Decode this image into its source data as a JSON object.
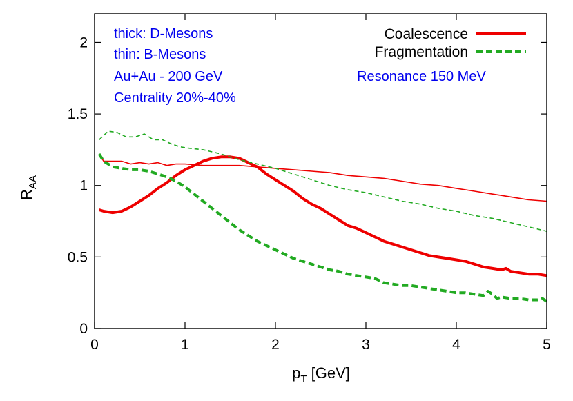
{
  "chart_data": {
    "type": "line",
    "xlabel": "p",
    "xlabel_sub": "T",
    "xlabel_unit": " [GeV]",
    "ylabel": "R",
    "ylabel_sub": "AA",
    "xlim": [
      0,
      5
    ],
    "ylim": [
      0,
      2.2
    ],
    "xticks": [
      0,
      1,
      2,
      3,
      4,
      5
    ],
    "xtick_labels": [
      "0",
      "1",
      "2",
      "3",
      "4",
      "5"
    ],
    "yticks": [
      0,
      0.5,
      1,
      1.5,
      2
    ],
    "ytick_labels": [
      "0",
      "0.5",
      "1",
      "1.5",
      "2"
    ],
    "grid": false,
    "legend_position": "top-right",
    "annotations": [
      "thick: D-Mesons",
      "thin: B-Mesons",
      "Au+Au - 200 GeV",
      "Centrality 20%-40%",
      "Resonance 150 MeV"
    ],
    "legend": [
      {
        "label": "Coalescence",
        "color": "#ee0000",
        "dash": "solid"
      },
      {
        "label": "Fragmentation",
        "color": "#22aa22",
        "dash": "dashed"
      }
    ],
    "series": [
      {
        "legend_index": 0,
        "meson": "D",
        "weight": "thick",
        "color": "#ee0000",
        "dash": "solid",
        "x": [
          0.05,
          0.1,
          0.2,
          0.3,
          0.4,
          0.5,
          0.6,
          0.7,
          0.8,
          0.9,
          1.0,
          1.1,
          1.2,
          1.3,
          1.4,
          1.5,
          1.6,
          1.7,
          1.8,
          1.9,
          2.0,
          2.1,
          2.2,
          2.3,
          2.4,
          2.5,
          2.6,
          2.7,
          2.8,
          2.9,
          3.0,
          3.1,
          3.2,
          3.3,
          3.4,
          3.5,
          3.6,
          3.7,
          3.8,
          3.9,
          4.0,
          4.1,
          4.2,
          4.3,
          4.4,
          4.5,
          4.55,
          4.6,
          4.7,
          4.8,
          4.9,
          5.0
        ],
        "y": [
          0.83,
          0.82,
          0.81,
          0.82,
          0.85,
          0.89,
          0.93,
          0.98,
          1.02,
          1.07,
          1.11,
          1.14,
          1.17,
          1.19,
          1.2,
          1.2,
          1.19,
          1.16,
          1.13,
          1.08,
          1.04,
          1.0,
          0.96,
          0.91,
          0.87,
          0.84,
          0.8,
          0.76,
          0.72,
          0.7,
          0.67,
          0.64,
          0.61,
          0.59,
          0.57,
          0.55,
          0.53,
          0.51,
          0.5,
          0.49,
          0.48,
          0.47,
          0.45,
          0.43,
          0.42,
          0.41,
          0.42,
          0.4,
          0.39,
          0.38,
          0.38,
          0.37
        ]
      },
      {
        "legend_index": 0,
        "meson": "B",
        "weight": "thin",
        "color": "#ee0000",
        "dash": "solid",
        "x": [
          0.05,
          0.1,
          0.2,
          0.3,
          0.4,
          0.5,
          0.6,
          0.7,
          0.8,
          0.9,
          1.0,
          1.2,
          1.4,
          1.6,
          1.8,
          2.0,
          2.2,
          2.4,
          2.6,
          2.8,
          3.0,
          3.2,
          3.4,
          3.6,
          3.8,
          4.0,
          4.2,
          4.4,
          4.5,
          4.6,
          4.8,
          5.0
        ],
        "y": [
          1.22,
          1.17,
          1.17,
          1.17,
          1.15,
          1.16,
          1.15,
          1.16,
          1.14,
          1.15,
          1.15,
          1.14,
          1.14,
          1.14,
          1.13,
          1.12,
          1.11,
          1.1,
          1.09,
          1.07,
          1.06,
          1.05,
          1.03,
          1.01,
          1.0,
          0.98,
          0.96,
          0.94,
          0.93,
          0.92,
          0.9,
          0.89
        ]
      },
      {
        "legend_index": 1,
        "meson": "D",
        "weight": "thick",
        "color": "#22aa22",
        "dash": "dashed",
        "x": [
          0.05,
          0.1,
          0.2,
          0.3,
          0.4,
          0.5,
          0.6,
          0.7,
          0.8,
          0.9,
          1.0,
          1.1,
          1.2,
          1.3,
          1.4,
          1.5,
          1.6,
          1.7,
          1.8,
          1.9,
          2.0,
          2.1,
          2.2,
          2.3,
          2.4,
          2.5,
          2.6,
          2.7,
          2.8,
          2.9,
          3.0,
          3.1,
          3.2,
          3.3,
          3.4,
          3.5,
          3.6,
          3.7,
          3.8,
          3.9,
          4.0,
          4.1,
          4.2,
          4.3,
          4.35,
          4.4,
          4.45,
          4.5,
          4.6,
          4.7,
          4.8,
          4.9,
          4.95,
          5.0
        ],
        "y": [
          1.22,
          1.17,
          1.13,
          1.12,
          1.11,
          1.11,
          1.1,
          1.08,
          1.06,
          1.03,
          0.99,
          0.94,
          0.89,
          0.84,
          0.79,
          0.74,
          0.69,
          0.65,
          0.61,
          0.58,
          0.55,
          0.52,
          0.49,
          0.47,
          0.45,
          0.43,
          0.41,
          0.4,
          0.38,
          0.37,
          0.36,
          0.35,
          0.32,
          0.31,
          0.3,
          0.3,
          0.29,
          0.28,
          0.27,
          0.26,
          0.25,
          0.25,
          0.24,
          0.23,
          0.26,
          0.24,
          0.21,
          0.22,
          0.21,
          0.21,
          0.2,
          0.2,
          0.21,
          0.19
        ]
      },
      {
        "legend_index": 1,
        "meson": "B",
        "weight": "thin",
        "color": "#22aa22",
        "dash": "dashed",
        "x": [
          0.05,
          0.15,
          0.25,
          0.35,
          0.45,
          0.55,
          0.65,
          0.75,
          0.85,
          0.95,
          1.05,
          1.2,
          1.4,
          1.6,
          1.8,
          2.0,
          2.2,
          2.4,
          2.6,
          2.8,
          3.0,
          3.2,
          3.4,
          3.6,
          3.8,
          4.0,
          4.2,
          4.4,
          4.6,
          4.8,
          5.0
        ],
        "y": [
          1.32,
          1.38,
          1.37,
          1.34,
          1.34,
          1.36,
          1.32,
          1.32,
          1.29,
          1.27,
          1.26,
          1.25,
          1.22,
          1.18,
          1.15,
          1.12,
          1.08,
          1.04,
          1.0,
          0.97,
          0.95,
          0.92,
          0.89,
          0.87,
          0.84,
          0.82,
          0.79,
          0.77,
          0.74,
          0.71,
          0.68
        ]
      }
    ]
  }
}
